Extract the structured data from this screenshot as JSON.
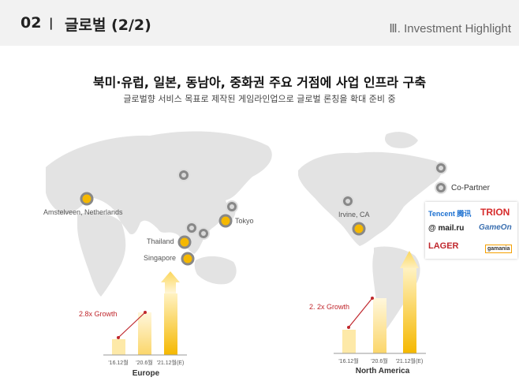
{
  "header": {
    "section_num": "02",
    "separator": "|",
    "title": "글로벌 (2/2)",
    "right_label": "Ⅲ. Investment Highlight"
  },
  "headline": "북미·유럽, 일본, 동남아, 중화권 주요 거점에 사업 인프라 구축",
  "subheadline": "글로벌향 서비스 목표로 제작된 게임라인업으로 글로벌 론칭을 확대 준비 중",
  "map_labels": {
    "amstelveen": "Amstelveen, Netherlands",
    "tokyo": "Tokyo",
    "thailand": "Thailand",
    "singapore": "Singapore",
    "irvine": "Irvine, CA"
  },
  "legend": {
    "co_partner": "Co-Partner"
  },
  "partners": [
    "Tencent 腾讯",
    "TRION",
    "@ mail.ru",
    "GameOn",
    "LAGER",
    "gamania"
  ],
  "colors": {
    "accent": "#f5b800",
    "gray_pin": "#888888",
    "map": "#e3e3e3",
    "growth": "#c0272d"
  },
  "charts": {
    "europe": {
      "growth_label": "2.8x Growth",
      "categories": [
        "'16.12월",
        "'20.6월",
        "'21.12월(E)"
      ],
      "values": [
        1,
        2.5,
        2.8
      ],
      "region": "Europe"
    },
    "north_america": {
      "growth_label": "2. 2x Growth",
      "categories": [
        "'16.12월",
        "'20.6월",
        "'21.12월(E)"
      ],
      "values": [
        1,
        2.0,
        2.2
      ],
      "region": "North America"
    }
  }
}
